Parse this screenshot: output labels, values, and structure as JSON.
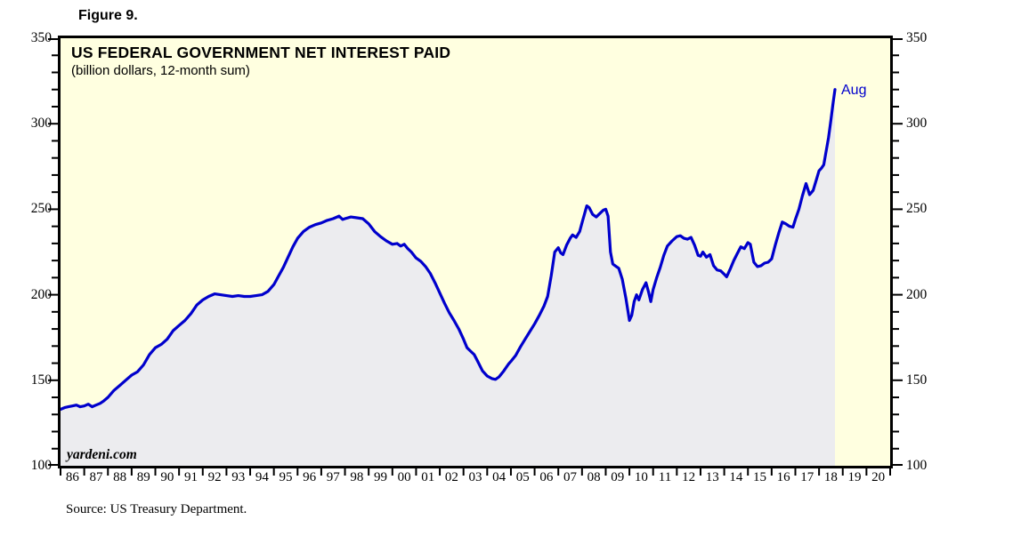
{
  "figure_label": "Figure 9.",
  "source": "Source: US Treasury Department.",
  "colors": {
    "line": "#0000CC",
    "area_fill": "#ECECEF",
    "chart_background": "#FFFFE0",
    "page_background": "#FFFFFF",
    "annotation": "#0000CC",
    "text": "#000000",
    "border": "#000000"
  },
  "chart_data": {
    "type": "area",
    "title": "US FEDERAL GOVERNMENT NET INTEREST PAID",
    "subtitle": "(billion dollars, 12-month sum)",
    "watermark": "yardeni.com",
    "last_point_label": "Aug",
    "grid": false,
    "legend_position": "none",
    "x_range": [
      1986,
      2021
    ],
    "y_range": [
      100,
      350
    ],
    "y_ticks": [
      100,
      150,
      200,
      250,
      300,
      350
    ],
    "y_minor_tick_step": 10,
    "x_tick_labels": [
      "86",
      "87",
      "88",
      "89",
      "90",
      "91",
      "92",
      "93",
      "94",
      "95",
      "96",
      "97",
      "98",
      "99",
      "00",
      "01",
      "02",
      "03",
      "04",
      "05",
      "06",
      "07",
      "08",
      "09",
      "10",
      "11",
      "12",
      "13",
      "14",
      "15",
      "16",
      "17",
      "18",
      "19",
      "20"
    ],
    "series": [
      {
        "name": "US federal government net interest paid, 12-month sum (billion dollars)",
        "points": [
          [
            1986.0,
            133
          ],
          [
            1986.17,
            134
          ],
          [
            1986.33,
            134.5
          ],
          [
            1986.5,
            135
          ],
          [
            1986.67,
            135.5
          ],
          [
            1986.83,
            134.5
          ],
          [
            1987.0,
            135
          ],
          [
            1987.17,
            136
          ],
          [
            1987.33,
            134.5
          ],
          [
            1987.5,
            135.5
          ],
          [
            1987.67,
            136.5
          ],
          [
            1987.83,
            138
          ],
          [
            1988.0,
            140
          ],
          [
            1988.25,
            144
          ],
          [
            1988.5,
            147
          ],
          [
            1988.75,
            150
          ],
          [
            1989.0,
            153
          ],
          [
            1989.25,
            155
          ],
          [
            1989.5,
            159
          ],
          [
            1989.75,
            165
          ],
          [
            1990.0,
            169
          ],
          [
            1990.25,
            171
          ],
          [
            1990.5,
            174
          ],
          [
            1990.75,
            179
          ],
          [
            1991.0,
            182
          ],
          [
            1991.25,
            185
          ],
          [
            1991.5,
            189
          ],
          [
            1991.75,
            194
          ],
          [
            1992.0,
            197
          ],
          [
            1992.25,
            199
          ],
          [
            1992.5,
            200.5
          ],
          [
            1992.75,
            200
          ],
          [
            1993.0,
            199.5
          ],
          [
            1993.25,
            199
          ],
          [
            1993.5,
            199.5
          ],
          [
            1993.75,
            199
          ],
          [
            1994.0,
            199
          ],
          [
            1994.25,
            199.5
          ],
          [
            1994.5,
            200
          ],
          [
            1994.75,
            202
          ],
          [
            1995.0,
            206
          ],
          [
            1995.2,
            211
          ],
          [
            1995.4,
            216
          ],
          [
            1995.6,
            222
          ],
          [
            1995.8,
            228
          ],
          [
            1996.0,
            233
          ],
          [
            1996.25,
            237
          ],
          [
            1996.5,
            239.5
          ],
          [
            1996.75,
            241
          ],
          [
            1997.0,
            242
          ],
          [
            1997.25,
            243.5
          ],
          [
            1997.5,
            244.5
          ],
          [
            1997.75,
            246
          ],
          [
            1997.9,
            244
          ],
          [
            1998.0,
            244.5
          ],
          [
            1998.25,
            245.5
          ],
          [
            1998.5,
            245
          ],
          [
            1998.75,
            244.5
          ],
          [
            1999.0,
            241.5
          ],
          [
            1999.25,
            237
          ],
          [
            1999.5,
            234
          ],
          [
            1999.75,
            231.5
          ],
          [
            2000.0,
            229.5
          ],
          [
            2000.2,
            230
          ],
          [
            2000.35,
            228.5
          ],
          [
            2000.5,
            229.5
          ],
          [
            2000.65,
            227
          ],
          [
            2000.8,
            225
          ],
          [
            2001.0,
            221.5
          ],
          [
            2001.2,
            219.5
          ],
          [
            2001.4,
            216.5
          ],
          [
            2001.6,
            212.5
          ],
          [
            2001.8,
            207
          ],
          [
            2002.0,
            201
          ],
          [
            2002.2,
            195
          ],
          [
            2002.4,
            189.5
          ],
          [
            2002.6,
            185
          ],
          [
            2002.8,
            180
          ],
          [
            2003.0,
            174
          ],
          [
            2003.15,
            169
          ],
          [
            2003.3,
            167
          ],
          [
            2003.45,
            165
          ],
          [
            2003.6,
            161
          ],
          [
            2003.8,
            155.5
          ],
          [
            2004.0,
            152.5
          ],
          [
            2004.2,
            151
          ],
          [
            2004.35,
            150.5
          ],
          [
            2004.5,
            152
          ],
          [
            2004.7,
            155.5
          ],
          [
            2004.9,
            159.5
          ],
          [
            2005.0,
            161
          ],
          [
            2005.2,
            164.5
          ],
          [
            2005.4,
            169.5
          ],
          [
            2005.6,
            174
          ],
          [
            2005.8,
            178.5
          ],
          [
            2006.0,
            183
          ],
          [
            2006.2,
            188
          ],
          [
            2006.4,
            193.5
          ],
          [
            2006.55,
            199
          ],
          [
            2006.7,
            211
          ],
          [
            2006.85,
            225
          ],
          [
            2007.0,
            227.5
          ],
          [
            2007.1,
            224.5
          ],
          [
            2007.2,
            223.5
          ],
          [
            2007.35,
            229
          ],
          [
            2007.5,
            233
          ],
          [
            2007.6,
            235
          ],
          [
            2007.75,
            233.5
          ],
          [
            2007.9,
            237
          ],
          [
            2008.0,
            242
          ],
          [
            2008.1,
            247
          ],
          [
            2008.2,
            252
          ],
          [
            2008.3,
            251
          ],
          [
            2008.45,
            247
          ],
          [
            2008.6,
            245.5
          ],
          [
            2008.75,
            247.5
          ],
          [
            2008.9,
            249.5
          ],
          [
            2009.0,
            250
          ],
          [
            2009.1,
            246
          ],
          [
            2009.2,
            225
          ],
          [
            2009.3,
            218
          ],
          [
            2009.45,
            216.5
          ],
          [
            2009.55,
            215.5
          ],
          [
            2009.7,
            209
          ],
          [
            2009.85,
            198
          ],
          [
            2010.0,
            185
          ],
          [
            2010.1,
            188
          ],
          [
            2010.2,
            196
          ],
          [
            2010.3,
            200
          ],
          [
            2010.4,
            197
          ],
          [
            2010.55,
            203
          ],
          [
            2010.7,
            207
          ],
          [
            2010.8,
            202
          ],
          [
            2010.9,
            196
          ],
          [
            2011.0,
            203
          ],
          [
            2011.15,
            210
          ],
          [
            2011.3,
            216
          ],
          [
            2011.45,
            223
          ],
          [
            2011.6,
            228.5
          ],
          [
            2011.8,
            231.5
          ],
          [
            2012.0,
            234
          ],
          [
            2012.15,
            234.5
          ],
          [
            2012.3,
            233
          ],
          [
            2012.45,
            232.5
          ],
          [
            2012.6,
            233.5
          ],
          [
            2012.75,
            229
          ],
          [
            2012.9,
            223
          ],
          [
            2013.0,
            222.5
          ],
          [
            2013.1,
            225
          ],
          [
            2013.25,
            222
          ],
          [
            2013.4,
            223.5
          ],
          [
            2013.55,
            217
          ],
          [
            2013.7,
            214.5
          ],
          [
            2013.85,
            214
          ],
          [
            2014.0,
            212
          ],
          [
            2014.1,
            210.5
          ],
          [
            2014.25,
            215
          ],
          [
            2014.4,
            220
          ],
          [
            2014.55,
            224
          ],
          [
            2014.7,
            228
          ],
          [
            2014.85,
            227
          ],
          [
            2015.0,
            230.5
          ],
          [
            2015.1,
            229.5
          ],
          [
            2015.25,
            219
          ],
          [
            2015.4,
            216.5
          ],
          [
            2015.55,
            217
          ],
          [
            2015.7,
            218.5
          ],
          [
            2015.85,
            219
          ],
          [
            2016.0,
            221
          ],
          [
            2016.15,
            229
          ],
          [
            2016.3,
            236
          ],
          [
            2016.45,
            242.5
          ],
          [
            2016.6,
            241.5
          ],
          [
            2016.75,
            240
          ],
          [
            2016.9,
            239.5
          ],
          [
            2017.0,
            244
          ],
          [
            2017.15,
            250
          ],
          [
            2017.3,
            258
          ],
          [
            2017.45,
            265
          ],
          [
            2017.6,
            258.5
          ],
          [
            2017.75,
            261
          ],
          [
            2017.9,
            268
          ],
          [
            2018.0,
            272.5
          ],
          [
            2018.1,
            274
          ],
          [
            2018.2,
            276
          ],
          [
            2018.3,
            284
          ],
          [
            2018.4,
            292
          ],
          [
            2018.5,
            302
          ],
          [
            2018.58,
            311
          ],
          [
            2018.67,
            320
          ]
        ]
      }
    ]
  }
}
